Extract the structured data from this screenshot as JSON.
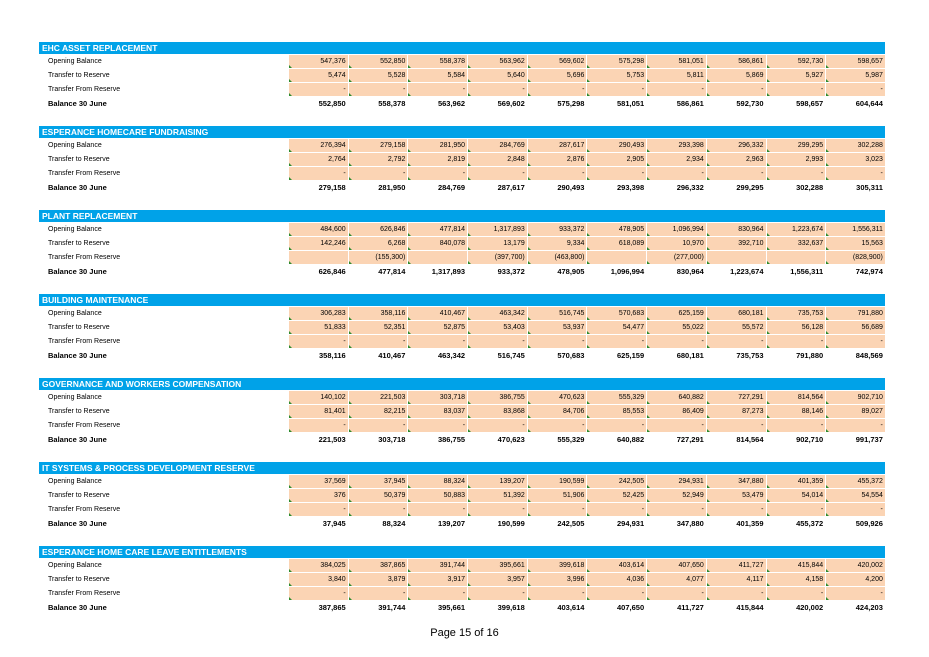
{
  "row_labels": {
    "opening": "Opening Balance",
    "to_reserve": "Transfer to Reserve",
    "from_reserve": "Transfer From Reserve",
    "balance": "Balance 30 June"
  },
  "sections": [
    {
      "title": "EHC ASSET REPLACEMENT",
      "opening": [
        "547,376",
        "552,850",
        "558,378",
        "563,962",
        "569,602",
        "575,298",
        "581,051",
        "586,861",
        "592,730",
        "598,657"
      ],
      "to_reserve": [
        "5,474",
        "5,528",
        "5,584",
        "5,640",
        "5,696",
        "5,753",
        "5,811",
        "5,869",
        "5,927",
        "5,987"
      ],
      "from_reserve": [
        "-",
        "-",
        "-",
        "-",
        "-",
        "-",
        "-",
        "-",
        "-",
        "-"
      ],
      "balance": [
        "552,850",
        "558,378",
        "563,962",
        "569,602",
        "575,298",
        "581,051",
        "586,861",
        "592,730",
        "598,657",
        "604,644"
      ]
    },
    {
      "title": "ESPERANCE HOMECARE FUNDRAISING",
      "opening": [
        "276,394",
        "279,158",
        "281,950",
        "284,769",
        "287,617",
        "290,493",
        "293,398",
        "296,332",
        "299,295",
        "302,288"
      ],
      "to_reserve": [
        "2,764",
        "2,792",
        "2,819",
        "2,848",
        "2,876",
        "2,905",
        "2,934",
        "2,963",
        "2,993",
        "3,023"
      ],
      "from_reserve": [
        "-",
        "-",
        "-",
        "-",
        "-",
        "-",
        "-",
        "-",
        "-",
        "-"
      ],
      "balance": [
        "279,158",
        "281,950",
        "284,769",
        "287,617",
        "290,493",
        "293,398",
        "296,332",
        "299,295",
        "302,288",
        "305,311"
      ]
    },
    {
      "title": "PLANT REPLACEMENT",
      "opening": [
        "484,600",
        "626,846",
        "477,814",
        "1,317,893",
        "933,372",
        "478,905",
        "1,096,994",
        "830,964",
        "1,223,674",
        "1,556,311"
      ],
      "to_reserve": [
        "142,246",
        "6,268",
        "840,078",
        "13,179",
        "9,334",
        "618,089",
        "10,970",
        "392,710",
        "332,637",
        "15,563"
      ],
      "from_reserve": [
        "",
        "(155,300)",
        "",
        "(397,700)",
        "(463,800)",
        "",
        "(277,000)",
        "",
        "",
        "(828,900)"
      ],
      "balance": [
        "626,846",
        "477,814",
        "1,317,893",
        "933,372",
        "478,905",
        "1,096,994",
        "830,964",
        "1,223,674",
        "1,556,311",
        "742,974"
      ]
    },
    {
      "title": "BUILDING MAINTENANCE",
      "opening": [
        "306,283",
        "358,116",
        "410,467",
        "463,342",
        "516,745",
        "570,683",
        "625,159",
        "680,181",
        "735,753",
        "791,880"
      ],
      "to_reserve": [
        "51,833",
        "52,351",
        "52,875",
        "53,403",
        "53,937",
        "54,477",
        "55,022",
        "55,572",
        "56,128",
        "56,689"
      ],
      "from_reserve": [
        "-",
        "-",
        "-",
        "-",
        "-",
        "-",
        "-",
        "-",
        "-",
        "-"
      ],
      "balance": [
        "358,116",
        "410,467",
        "463,342",
        "516,745",
        "570,683",
        "625,159",
        "680,181",
        "735,753",
        "791,880",
        "848,569"
      ]
    },
    {
      "title": "GOVERNANCE AND WORKERS COMPENSATION",
      "opening": [
        "140,102",
        "221,503",
        "303,718",
        "386,755",
        "470,623",
        "555,329",
        "640,882",
        "727,291",
        "814,564",
        "902,710"
      ],
      "to_reserve": [
        "81,401",
        "82,215",
        "83,037",
        "83,868",
        "84,706",
        "85,553",
        "86,409",
        "87,273",
        "88,146",
        "89,027"
      ],
      "from_reserve": [
        "-",
        "-",
        "-",
        "-",
        "-",
        "-",
        "-",
        "-",
        "-",
        "-"
      ],
      "balance": [
        "221,503",
        "303,718",
        "386,755",
        "470,623",
        "555,329",
        "640,882",
        "727,291",
        "814,564",
        "902,710",
        "991,737"
      ]
    },
    {
      "title": "IT SYSTEMS & PROCESS DEVELOPMENT RESERVE",
      "opening": [
        "37,569",
        "37,945",
        "88,324",
        "139,207",
        "190,599",
        "242,505",
        "294,931",
        "347,880",
        "401,359",
        "455,372"
      ],
      "to_reserve": [
        "376",
        "50,379",
        "50,883",
        "51,392",
        "51,906",
        "52,425",
        "52,949",
        "53,479",
        "54,014",
        "54,554"
      ],
      "from_reserve": [
        "-",
        "-",
        "-",
        "-",
        "-",
        "-",
        "-",
        "-",
        "-",
        "-"
      ],
      "balance": [
        "37,945",
        "88,324",
        "139,207",
        "190,599",
        "242,505",
        "294,931",
        "347,880",
        "401,359",
        "455,372",
        "509,926"
      ]
    },
    {
      "title": "ESPERANCE HOME CARE LEAVE ENTITLEMENTS",
      "opening": [
        "384,025",
        "387,865",
        "391,744",
        "395,661",
        "399,618",
        "403,614",
        "407,650",
        "411,727",
        "415,844",
        "420,002"
      ],
      "to_reserve": [
        "3,840",
        "3,879",
        "3,917",
        "3,957",
        "3,996",
        "4,036",
        "4,077",
        "4,117",
        "4,158",
        "4,200"
      ],
      "from_reserve": [
        "-",
        "-",
        "-",
        "-",
        "-",
        "-",
        "-",
        "-",
        "-",
        "-"
      ],
      "balance": [
        "387,865",
        "391,744",
        "395,661",
        "399,618",
        "403,614",
        "407,650",
        "411,727",
        "415,844",
        "420,002",
        "424,203"
      ]
    }
  ],
  "footer": {
    "page_label": "Page 15 of 16"
  }
}
